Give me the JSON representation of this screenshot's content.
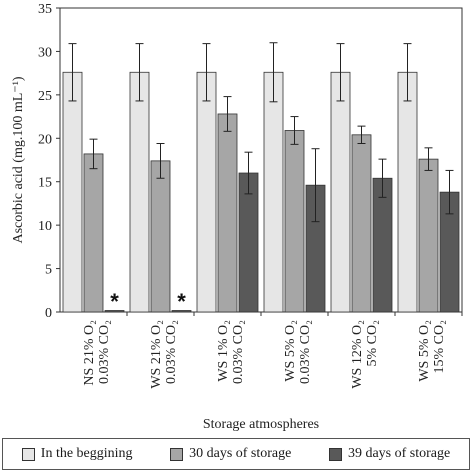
{
  "chart_data": {
    "type": "bar",
    "xlabel": "Storage atmospheres",
    "ylabel": "Ascorbic acid (mg.100 mL⁻¹)",
    "ylim": [
      0,
      35
    ],
    "yticks": [
      0,
      5,
      10,
      15,
      20,
      25,
      30,
      35
    ],
    "grid": false,
    "legend_position": "bottom",
    "categories": [
      [
        "NS 21% O₂",
        "0.03% CO₂"
      ],
      [
        "WS 21% O₂",
        "0.03% CO₂"
      ],
      [
        "WS 1% O₂",
        "0.03% CO₂"
      ],
      [
        "WS 5% O₂",
        "0.03% CO₂"
      ],
      [
        "WS 12% O₂",
        "5% CO₂"
      ],
      [
        "WS 5% O₂",
        "15% CO₂"
      ]
    ],
    "series": [
      {
        "name": "In the beggining",
        "color": "#e6e6e6",
        "values": [
          27.6,
          27.6,
          27.6,
          27.6,
          27.6,
          27.6
        ],
        "errors": [
          3.3,
          3.3,
          3.3,
          3.4,
          3.3,
          3.3
        ]
      },
      {
        "name": "30 days of storage",
        "color": "#a6a6a6",
        "values": [
          18.2,
          17.4,
          22.8,
          20.9,
          20.4,
          17.6
        ],
        "errors": [
          1.7,
          2.0,
          2.0,
          1.6,
          1.0,
          1.3
        ]
      },
      {
        "name": "39 days of storage",
        "color": "#595959",
        "values": [
          0,
          0,
          16.0,
          14.6,
          15.4,
          13.8
        ],
        "errors": [
          0,
          0,
          2.4,
          4.2,
          2.2,
          2.5
        ]
      }
    ],
    "annotations": [
      {
        "text": "*",
        "category_index": 0,
        "series_index": 2
      },
      {
        "text": "*",
        "category_index": 1,
        "series_index": 2
      }
    ]
  }
}
